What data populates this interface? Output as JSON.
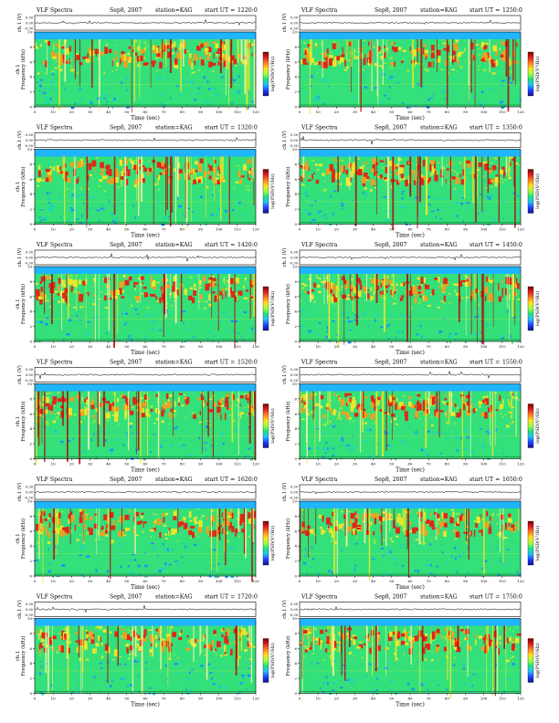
{
  "figure": {
    "labels": {
      "title": "VLF Spectra",
      "date": "Sep8, 2007",
      "station": "station=KAG",
      "start_prefix": "start UT =",
      "ch_axis": "ch.1 (V)",
      "freq_axis": "Frequency (kHz)",
      "ch_side": "ch.1",
      "time_axis": "Time (sec)",
      "colorbar": "log(PSD(V²/Hz)"
    },
    "colors": {
      "spectrogram": [
        "#0d2bd6",
        "#1e90ff",
        "#19d3c2",
        "#33e07a",
        "#8ee83c",
        "#e8e82a",
        "#f0a020",
        "#e02818",
        "#b01010"
      ],
      "band_top": "#1fb5ff",
      "baseline": "#1a8a3a",
      "colorbar": [
        "#7a0000",
        "#e02020",
        "#ff8020",
        "#ffe020",
        "#a0ff40",
        "#20e080",
        "#20c0ff",
        "#2040ff",
        "#10108a"
      ]
    }
  },
  "chart_data": [
    {
      "type": "heatmap",
      "title": "VLF Spectra",
      "date": "Sep8, 2007",
      "station": "station=KAG",
      "start_ut": "1220:0",
      "xlabel": "Time (sec)",
      "ylabel": "Frequency (kHz)",
      "xlim": [
        0,
        120
      ],
      "ylim": [
        0,
        10
      ],
      "xticks": [
        0,
        10,
        20,
        30,
        40,
        50,
        60,
        70,
        80,
        90,
        100,
        110,
        120
      ],
      "yticks": [
        0,
        2,
        4,
        6,
        8,
        10
      ],
      "ch_ticks": [
        "0.30",
        "0.00",
        "-0.30"
      ]
    },
    {
      "type": "heatmap",
      "title": "VLF Spectra",
      "date": "Sep8, 2007",
      "station": "station=KAG",
      "start_ut": "1250:0",
      "xlabel": "Time (sec)",
      "ylabel": "Frequency (kHz)",
      "xlim": [
        0,
        120
      ],
      "ylim": [
        0,
        10
      ],
      "xticks": [
        0,
        10,
        20,
        30,
        40,
        50,
        60,
        70,
        80,
        90,
        100,
        110,
        120
      ],
      "yticks": [
        0,
        2,
        4,
        6,
        8,
        10
      ],
      "ch_ticks": [
        "0.30",
        "0.00",
        "-0.30"
      ]
    },
    {
      "type": "heatmap",
      "title": "VLF Spectra",
      "date": "Sep8, 2007",
      "station": "station=KAG",
      "start_ut": "1320:0",
      "xlabel": "Time (sec)",
      "ylabel": "Frequency (kHz)",
      "xlim": [
        0,
        120
      ],
      "ylim": [
        0,
        10
      ],
      "xticks": [
        0,
        10,
        20,
        30,
        40,
        50,
        60,
        70,
        80,
        90,
        100,
        110,
        120
      ],
      "yticks": [
        0,
        2,
        4,
        6,
        8,
        10
      ],
      "ch_ticks": [
        "0.30",
        "0.00",
        "-0.30"
      ]
    },
    {
      "type": "heatmap",
      "title": "VLF Spectra",
      "date": "Sep8, 2007",
      "station": "station=KAG",
      "start_ut": "1350:0",
      "xlabel": "Time (sec)",
      "ylabel": "Frequency (kHz)",
      "xlim": [
        0,
        120
      ],
      "ylim": [
        0,
        10
      ],
      "xticks": [
        0,
        10,
        20,
        30,
        40,
        50,
        60,
        70,
        80,
        90,
        100,
        110,
        120
      ],
      "yticks": [
        0,
        2,
        4,
        6,
        8,
        10
      ],
      "ch_ticks": [
        "0.30",
        "0.00",
        "-0.30"
      ]
    },
    {
      "type": "heatmap",
      "title": "VLF Spectra",
      "date": "Sep8, 2007",
      "station": "station=KAG",
      "start_ut": "1420:0",
      "xlabel": "Time (sec)",
      "ylabel": "Frequency (kHz)",
      "xlim": [
        0,
        120
      ],
      "ylim": [
        0,
        10
      ],
      "xticks": [
        0,
        10,
        20,
        30,
        40,
        50,
        60,
        70,
        80,
        90,
        100,
        110,
        120
      ],
      "yticks": [
        0,
        2,
        4,
        6,
        8,
        10
      ],
      "ch_ticks": [
        "0.30",
        "0.00",
        "-0.30"
      ]
    },
    {
      "type": "heatmap",
      "title": "VLF Spectra",
      "date": "Sep8, 2007",
      "station": "station=KAG",
      "start_ut": "1450:0",
      "xlabel": "Time (sec)",
      "ylabel": "Frequency (kHz)",
      "xlim": [
        0,
        120
      ],
      "ylim": [
        0,
        10
      ],
      "xticks": [
        0,
        10,
        20,
        30,
        40,
        50,
        60,
        70,
        80,
        90,
        100,
        110,
        120
      ],
      "yticks": [
        0,
        2,
        4,
        6,
        8,
        10
      ],
      "ch_ticks": [
        "0.30",
        "0.00",
        "-0.30"
      ]
    },
    {
      "type": "heatmap",
      "title": "VLF Spectra",
      "date": "Sep8, 2007",
      "station": "station=KAG",
      "start_ut": "1520:0",
      "xlabel": "Time (sec)",
      "ylabel": "Frequency (kHz)",
      "xlim": [
        0,
        120
      ],
      "ylim": [
        0,
        10
      ],
      "xticks": [
        0,
        10,
        20,
        30,
        40,
        50,
        60,
        70,
        80,
        90,
        100,
        110,
        120
      ],
      "yticks": [
        0,
        2,
        4,
        6,
        8,
        10
      ],
      "ch_ticks": [
        "0.30",
        "0.00",
        "-0.30"
      ]
    },
    {
      "type": "heatmap",
      "title": "VLF Spectra",
      "date": "Sep8, 2007",
      "station": "station=KAG",
      "start_ut": "1550:0",
      "xlabel": "Time (sec)",
      "ylabel": "Frequency (kHz)",
      "xlim": [
        0,
        120
      ],
      "ylim": [
        0,
        10
      ],
      "xticks": [
        0,
        10,
        20,
        30,
        40,
        50,
        60,
        70,
        80,
        90,
        100,
        110,
        120
      ],
      "yticks": [
        0,
        2,
        4,
        6,
        8,
        10
      ],
      "ch_ticks": [
        "0.30",
        "0.00",
        "-0.30"
      ]
    },
    {
      "type": "heatmap",
      "title": "VLF Spectra",
      "date": "Sep8, 2007",
      "station": "station=KAG",
      "start_ut": "1620:0",
      "xlabel": "Time (sec)",
      "ylabel": "Frequency (kHz)",
      "xlim": [
        0,
        120
      ],
      "ylim": [
        0,
        10
      ],
      "xticks": [
        0,
        10,
        20,
        30,
        40,
        50,
        60,
        70,
        80,
        90,
        100,
        110,
        120
      ],
      "yticks": [
        0,
        2,
        4,
        6,
        8,
        10
      ],
      "ch_ticks": [
        "0.30",
        "0.00",
        "-0.30"
      ]
    },
    {
      "type": "heatmap",
      "title": "VLF Spectra",
      "date": "Sep8, 2007",
      "station": "station=KAG",
      "start_ut": "1650:0",
      "xlabel": "Time (sec)",
      "ylabel": "Frequency (kHz)",
      "xlim": [
        0,
        120
      ],
      "ylim": [
        0,
        10
      ],
      "xticks": [
        0,
        10,
        20,
        30,
        40,
        50,
        60,
        70,
        80,
        90,
        100,
        110,
        120
      ],
      "yticks": [
        0,
        2,
        4,
        6,
        8,
        10
      ],
      "ch_ticks": [
        "0.30",
        "0.00",
        "-0.30"
      ]
    },
    {
      "type": "heatmap",
      "title": "VLF Spectra",
      "date": "Sep8, 2007",
      "station": "station=KAG",
      "start_ut": "1720:0",
      "xlabel": "Time (sec)",
      "ylabel": "Frequency (kHz)",
      "xlim": [
        0,
        120
      ],
      "ylim": [
        0,
        10
      ],
      "xticks": [
        0,
        10,
        20,
        30,
        40,
        50,
        60,
        70,
        80,
        90,
        100,
        110,
        120
      ],
      "yticks": [
        0,
        2,
        4,
        6,
        8,
        10
      ],
      "ch_ticks": [
        "0.30",
        "0.00",
        "-0.30"
      ]
    },
    {
      "type": "heatmap",
      "title": "VLF Spectra",
      "date": "Sep8, 2007",
      "station": "station=KAG",
      "start_ut": "1750:0",
      "xlabel": "Time (sec)",
      "ylabel": "Frequency (kHz)",
      "xlim": [
        0,
        120
      ],
      "ylim": [
        0,
        10
      ],
      "xticks": [
        0,
        10,
        20,
        30,
        40,
        50,
        60,
        70,
        80,
        90,
        100,
        110,
        120
      ],
      "yticks": [
        0,
        2,
        4,
        6,
        8,
        10
      ],
      "ch_ticks": [
        "0.30",
        "0.00",
        "-0.30"
      ]
    }
  ]
}
